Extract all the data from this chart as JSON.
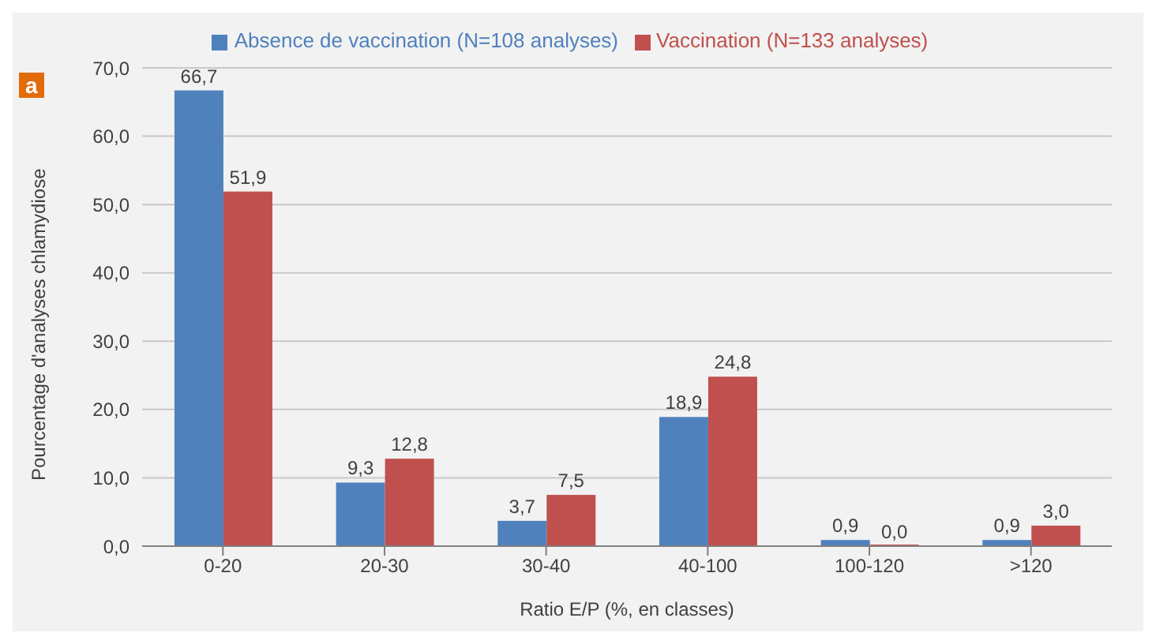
{
  "chart_data": {
    "type": "bar",
    "categories": [
      "0-20",
      "20-30",
      "30-40",
      "40-100",
      "100-120",
      ">120"
    ],
    "series": [
      {
        "name": "Absence de vaccination (N=108 analyses)",
        "color": "#4f81bd",
        "values": [
          66.7,
          9.3,
          3.7,
          18.9,
          0.9,
          0.9
        ],
        "value_labels": [
          "66,7",
          "9,3",
          "3,7",
          "18,9",
          "0,9",
          "0,9"
        ]
      },
      {
        "name": "Vaccination (N=133 analyses)",
        "color": "#c0504d",
        "values": [
          51.9,
          12.8,
          7.5,
          24.8,
          0.0,
          3.0
        ],
        "value_labels": [
          "51,9",
          "12,8",
          "7,5",
          "24,8",
          "0,0",
          "3,0"
        ]
      }
    ],
    "xlabel": "Ratio E/P (%, en classes)",
    "ylabel": "Pourcentage d'analyses chlamydiose",
    "ylim": [
      0,
      70
    ],
    "yticks": [
      {
        "value": 0,
        "label": "0,0"
      },
      {
        "value": 10,
        "label": "10,0"
      },
      {
        "value": 20,
        "label": "20,0"
      },
      {
        "value": 30,
        "label": "30,0"
      },
      {
        "value": 40,
        "label": "40,0"
      },
      {
        "value": 50,
        "label": "50,0"
      },
      {
        "value": 60,
        "label": "60,0"
      },
      {
        "value": 70,
        "label": "70,0"
      }
    ],
    "grid": "y",
    "legend": "top",
    "annotations": [
      "a"
    ]
  }
}
